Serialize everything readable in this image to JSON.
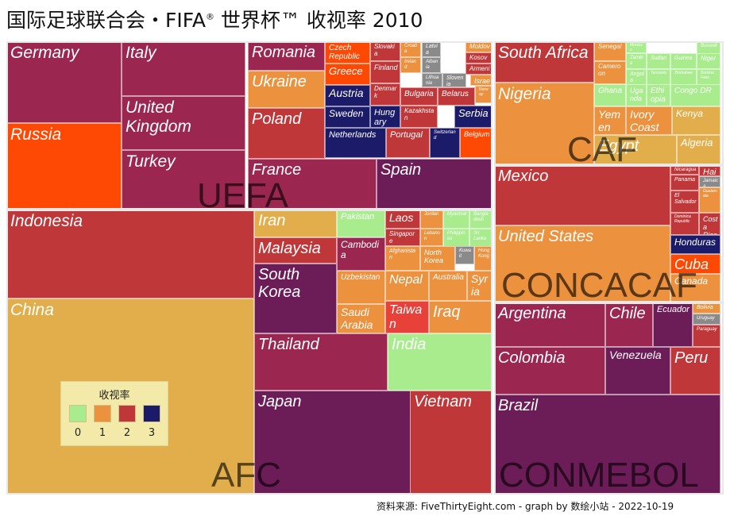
{
  "title": {
    "main": "国际足球联合会・FIFA",
    "reg": "®",
    "rest": " 世界杯™ 收视率 2010"
  },
  "source": "资料来源: FiveThirtyEight.com - graph by 数绘小站 - 2022-10-19",
  "colors": {
    "0": "#a8ec8e",
    "1": "#ec913d",
    "2": "#c0373a",
    "3": "#1b1b6a",
    "grey": "#8a8a8a",
    "red": "#fd4903",
    "mustard": "#e2ae4c",
    "plum": "#6c1d58",
    "wine": "#9b2750"
  },
  "legend": {
    "title": "收视率",
    "items": [
      {
        "label": "0",
        "color": "#a8ec8e"
      },
      {
        "label": "1",
        "color": "#ec913d"
      },
      {
        "label": "2",
        "color": "#c0373a"
      },
      {
        "label": "3",
        "color": "#1b1b6a"
      }
    ]
  },
  "chart_data": {
    "type": "treemap",
    "title": "国际足球联合会・FIFA® 世界杯™ 收视率 2010",
    "legend": {
      "title": "收视率",
      "entries": [
        "0",
        "1",
        "2",
        "3"
      ],
      "placement": "bottom-left"
    },
    "regions": [
      {
        "name": "UEFA",
        "countries": [
          {
            "name": "Germany",
            "color": "#9b2750"
          },
          {
            "name": "Russia",
            "color": "#fd4903"
          },
          {
            "name": "Italy",
            "color": "#9b2750"
          },
          {
            "name": "United Kingdom",
            "color": "#9b2750"
          },
          {
            "name": "Turkey",
            "color": "#9b2750"
          },
          {
            "name": "Romania",
            "color": "#9b2750"
          },
          {
            "name": "Ukraine",
            "color": "#ec913d"
          },
          {
            "name": "Poland",
            "color": "#c0373a"
          },
          {
            "name": "France",
            "color": "#9b2750"
          },
          {
            "name": "Spain",
            "color": "#6c1d58"
          },
          {
            "name": "Czech Republic",
            "color": "#fd4903"
          },
          {
            "name": "Greece",
            "color": "#fd4903"
          },
          {
            "name": "Austria",
            "color": "#1b1b6a"
          },
          {
            "name": "Sweden",
            "color": "#1b1b6a"
          },
          {
            "name": "Netherlands",
            "color": "#1b1b6a"
          },
          {
            "name": "Slovakia",
            "color": "#c0373a"
          },
          {
            "name": "Finland",
            "color": "#c0373a"
          },
          {
            "name": "Denmark",
            "color": "#c0373a"
          },
          {
            "name": "Hungary",
            "color": "#1b1b6a"
          },
          {
            "name": "Portugal",
            "color": "#c0373a"
          },
          {
            "name": "Croatia",
            "color": "#ec913d"
          },
          {
            "name": "Ireland",
            "color": "#ec913d"
          },
          {
            "name": "Latvia",
            "color": "#8a8a8a"
          },
          {
            "name": "Albania",
            "color": "#8a8a8a"
          },
          {
            "name": "Lithuania",
            "color": "#8a8a8a"
          },
          {
            "name": "Slovenia",
            "color": "#8a8a8a"
          },
          {
            "name": "Moldova",
            "color": "#ec913d"
          },
          {
            "name": "Kosovo",
            "color": "#c0373a"
          },
          {
            "name": "Armenia",
            "color": "#c0373a"
          },
          {
            "name": "Israel",
            "color": "#ec913d"
          },
          {
            "name": "Norway",
            "color": "#ec913d"
          },
          {
            "name": "Bulgaria",
            "color": "#c0373a"
          },
          {
            "name": "Belarus",
            "color": "#c0373a"
          },
          {
            "name": "Kazakhstan",
            "color": "#c0373a"
          },
          {
            "name": "Serbia",
            "color": "#1b1b6a"
          },
          {
            "name": "Switzerland",
            "color": "#1b1b6a"
          },
          {
            "name": "Belgium",
            "color": "#fd4903"
          }
        ]
      },
      {
        "name": "CAF",
        "countries": [
          {
            "name": "South Africa",
            "color": "#c0373a"
          },
          {
            "name": "Nigeria",
            "color": "#ec913d"
          },
          {
            "name": "Senegal",
            "color": "#ec913d"
          },
          {
            "name": "Morocco",
            "color": "#a8ec8e"
          },
          {
            "name": "Burundi",
            "color": "#a8ec8e"
          },
          {
            "name": "Zambia",
            "color": "#a8ec8e"
          },
          {
            "name": "Sudan",
            "color": "#a8ec8e"
          },
          {
            "name": "Guinea",
            "color": "#a8ec8e"
          },
          {
            "name": "Niger",
            "color": "#a8ec8e"
          },
          {
            "name": "Cameroon",
            "color": "#ec913d"
          },
          {
            "name": "Angola",
            "color": "#a8ec8e"
          },
          {
            "name": "Tanzania",
            "color": "#a8ec8e"
          },
          {
            "name": "Zimbabwe",
            "color": "#a8ec8e"
          },
          {
            "name": "Burkina Faso",
            "color": "#a8ec8e"
          },
          {
            "name": "Ghana",
            "color": "#a8ec8e"
          },
          {
            "name": "Uganda",
            "color": "#a8ec8e"
          },
          {
            "name": "Ethiopia",
            "color": "#a8ec8e"
          },
          {
            "name": "Congo DR",
            "color": "#a8ec8e"
          },
          {
            "name": "Yemen",
            "color": "#ec913d"
          },
          {
            "name": "Ivory Coast",
            "color": "#ec913d"
          },
          {
            "name": "Kenya",
            "color": "#e2ae4c"
          },
          {
            "name": "Egypt",
            "color": "#e2ae4c"
          },
          {
            "name": "Algeria",
            "color": "#e2ae4c"
          }
        ]
      },
      {
        "name": "AFC",
        "countries": [
          {
            "name": "Indonesia",
            "color": "#c0373a"
          },
          {
            "name": "China",
            "color": "#e2ae4c"
          },
          {
            "name": "Iran",
            "color": "#e2ae4c"
          },
          {
            "name": "Pakistan",
            "color": "#a8ec8e"
          },
          {
            "name": "Laos",
            "color": "#c0373a"
          },
          {
            "name": "Malaysia",
            "color": "#c0373a"
          },
          {
            "name": "Cambodia",
            "color": "#9b2750"
          },
          {
            "name": "Singapore",
            "color": "#c0373a"
          },
          {
            "name": "Afghanistan",
            "color": "#ec913d"
          },
          {
            "name": "Jordan",
            "color": "#ec913d"
          },
          {
            "name": "Myanmar",
            "color": "#a8ec8e"
          },
          {
            "name": "Bangladesh",
            "color": "#a8ec8e"
          },
          {
            "name": "Lebanon",
            "color": "#ec913d"
          },
          {
            "name": "Philippines",
            "color": "#a8ec8e"
          },
          {
            "name": "Sri Lanka",
            "color": "#a8ec8e"
          },
          {
            "name": "North Korea",
            "color": "#ec913d"
          },
          {
            "name": "Kuwait",
            "color": "#8a8a8a"
          },
          {
            "name": "Hong Kong",
            "color": "#ec913d"
          },
          {
            "name": "South Korea",
            "color": "#6c1d58"
          },
          {
            "name": "Uzbekistan",
            "color": "#ec913d"
          },
          {
            "name": "Nepal",
            "color": "#ec913d"
          },
          {
            "name": "Australia",
            "color": "#ec913d"
          },
          {
            "name": "Syria",
            "color": "#ec913d"
          },
          {
            "name": "Saudi Arabia",
            "color": "#ec913d"
          },
          {
            "name": "Taiwan",
            "color": "#e8413a"
          },
          {
            "name": "Iraq",
            "color": "#ec913d"
          },
          {
            "name": "Thailand",
            "color": "#9b2750"
          },
          {
            "name": "India",
            "color": "#a8ec8e"
          },
          {
            "name": "Japan",
            "color": "#6c1d58"
          },
          {
            "name": "Vietnam",
            "color": "#c0373a"
          }
        ]
      },
      {
        "name": "CONCACAF",
        "countries": [
          {
            "name": "Mexico",
            "color": "#c0373a"
          },
          {
            "name": "United States",
            "color": "#ec913d"
          },
          {
            "name": "Nicaragua",
            "color": "#c0373a"
          },
          {
            "name": "Haiti",
            "color": "#c0373a"
          },
          {
            "name": "Panama",
            "color": "#c0373a"
          },
          {
            "name": "Jamaica",
            "color": "#8a8a8a"
          },
          {
            "name": "El Salvador",
            "color": "#c0373a"
          },
          {
            "name": "Guatemala",
            "color": "#ec913d"
          },
          {
            "name": "Dominica Republic",
            "color": "#c0373a"
          },
          {
            "name": "Costa Rica",
            "color": "#c0373a"
          },
          {
            "name": "Honduras",
            "color": "#1b1b6a"
          },
          {
            "name": "Cuba",
            "color": "#fd4903"
          },
          {
            "name": "Canada",
            "color": "#ec913d"
          }
        ]
      },
      {
        "name": "CONMEBOL",
        "countries": [
          {
            "name": "Argentina",
            "color": "#9b2750"
          },
          {
            "name": "Chile",
            "color": "#9b2750"
          },
          {
            "name": "Ecuador",
            "color": "#6c1d58"
          },
          {
            "name": "Bolivia",
            "color": "#ec913d"
          },
          {
            "name": "Uruguay",
            "color": "#8a8a8a"
          },
          {
            "name": "Paraguay",
            "color": "#c0373a"
          },
          {
            "name": "Colombia",
            "color": "#9b2750"
          },
          {
            "name": "Venezuela",
            "color": "#6c1d58"
          },
          {
            "name": "Peru",
            "color": "#c0373a"
          },
          {
            "name": "Brazil",
            "color": "#6c1d58"
          }
        ]
      }
    ]
  }
}
